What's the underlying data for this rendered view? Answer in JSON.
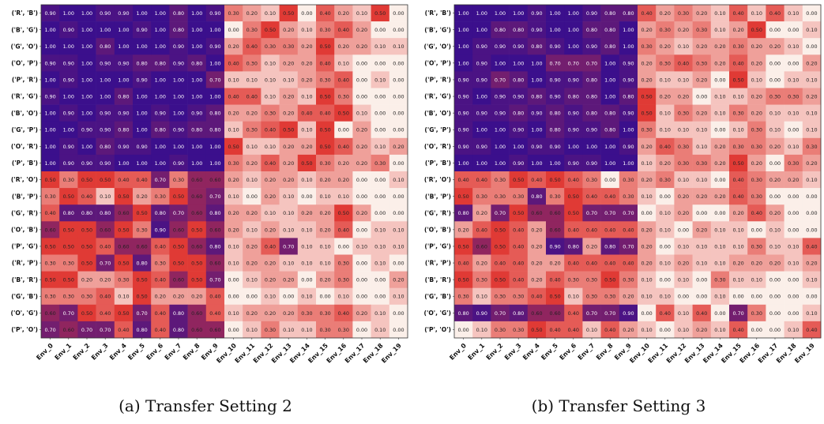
{
  "colors": {
    "high": "#3b0f8c",
    "mid": "#fbefe9",
    "low": "#e03a35"
  },
  "chart_data": [
    {
      "type": "heatmap",
      "caption": "(a) Transfer Setting 2",
      "rows": [
        "('R', 'B')",
        "('B', 'G')",
        "('G', 'O')",
        "('O', 'P')",
        "('P', 'R')",
        "('R', 'G')",
        "('B', 'O')",
        "('G', 'P')",
        "('O', 'R')",
        "('P', 'B')",
        "('R', 'O')",
        "('B', 'P')",
        "('G', 'R')",
        "('O', 'B')",
        "('P', 'G')",
        "('R', 'P')",
        "('B', 'R')",
        "('G', 'B')",
        "('O', 'G')",
        "('P', 'O')"
      ],
      "cols": [
        "Env_0",
        "Env_1",
        "Env_2",
        "Env_3",
        "Env_4",
        "Env_5",
        "Env_6",
        "Env_7",
        "Env_8",
        "Env_9",
        "Env_10",
        "Env_11",
        "Env_12",
        "Env_13",
        "Env_14",
        "Env_15",
        "Env_16",
        "Env_17",
        "Env_18",
        "Env_19"
      ],
      "values": [
        [
          0.9,
          1.0,
          1.0,
          0.9,
          0.9,
          1.0,
          1.0,
          0.8,
          1.0,
          0.9,
          0.3,
          0.2,
          0.1,
          0.5,
          0.0,
          0.4,
          0.2,
          0.1,
          0.5,
          0.0
        ],
        [
          1.0,
          0.9,
          1.0,
          1.0,
          1.0,
          0.9,
          1.0,
          0.8,
          1.0,
          1.0,
          0.0,
          0.3,
          0.5,
          0.2,
          0.1,
          0.3,
          0.4,
          0.2,
          0.0,
          0.0
        ],
        [
          1.0,
          1.0,
          1.0,
          0.8,
          1.0,
          1.0,
          1.0,
          0.9,
          1.0,
          0.9,
          0.2,
          0.4,
          0.3,
          0.3,
          0.2,
          0.5,
          0.2,
          0.2,
          0.1,
          0.1
        ],
        [
          0.9,
          0.9,
          1.0,
          0.9,
          0.9,
          0.8,
          0.8,
          0.9,
          0.8,
          1.0,
          0.4,
          0.3,
          0.1,
          0.2,
          0.2,
          0.4,
          0.1,
          0.0,
          0.0,
          0.0
        ],
        [
          1.0,
          0.9,
          1.0,
          1.0,
          1.0,
          0.9,
          1.0,
          1.0,
          1.0,
          0.7,
          0.1,
          0.1,
          0.1,
          0.1,
          0.2,
          0.3,
          0.4,
          0.0,
          0.1,
          0.0
        ],
        [
          0.9,
          1.0,
          1.0,
          1.0,
          0.8,
          1.0,
          1.0,
          1.0,
          1.0,
          1.0,
          0.4,
          0.4,
          0.1,
          0.2,
          0.1,
          0.5,
          0.3,
          0.0,
          0.0,
          0.0
        ],
        [
          1.0,
          0.9,
          1.0,
          0.9,
          0.9,
          1.0,
          0.9,
          1.0,
          0.9,
          0.8,
          0.2,
          0.2,
          0.3,
          0.2,
          0.4,
          0.4,
          0.5,
          0.1,
          0.0,
          0.0
        ],
        [
          1.0,
          1.0,
          0.9,
          0.9,
          0.8,
          1.0,
          0.8,
          0.9,
          0.8,
          0.8,
          0.1,
          0.3,
          0.4,
          0.5,
          0.1,
          0.5,
          0.0,
          0.2,
          0.0,
          0.0
        ],
        [
          1.0,
          0.9,
          1.0,
          0.8,
          0.9,
          0.9,
          1.0,
          1.0,
          1.0,
          1.0,
          0.5,
          0.1,
          0.1,
          0.2,
          0.2,
          0.5,
          0.4,
          0.2,
          0.1,
          0.2
        ],
        [
          1.0,
          0.9,
          0.9,
          0.9,
          1.0,
          1.0,
          1.0,
          0.9,
          1.0,
          1.0,
          0.3,
          0.2,
          0.4,
          0.2,
          0.5,
          0.3,
          0.2,
          0.2,
          0.3,
          0.0
        ],
        [
          0.5,
          0.3,
          0.5,
          0.5,
          0.4,
          0.4,
          0.7,
          0.3,
          0.6,
          0.6,
          0.2,
          0.1,
          0.2,
          0.2,
          0.1,
          0.2,
          0.2,
          0.0,
          0.0,
          0.1
        ],
        [
          0.3,
          0.5,
          0.4,
          0.1,
          0.5,
          0.2,
          0.3,
          0.5,
          0.6,
          0.7,
          0.1,
          0.0,
          0.2,
          0.1,
          0.0,
          0.1,
          0.1,
          0.0,
          0.0,
          0.0
        ],
        [
          0.4,
          0.8,
          0.8,
          0.8,
          0.6,
          0.5,
          0.8,
          0.7,
          0.6,
          0.8,
          0.2,
          0.2,
          0.1,
          0.1,
          0.2,
          0.2,
          0.5,
          0.2,
          0.0,
          0.0
        ],
        [
          0.6,
          0.5,
          0.5,
          0.6,
          0.5,
          0.3,
          0.9,
          0.6,
          0.5,
          0.6,
          0.2,
          0.1,
          0.2,
          0.1,
          0.1,
          0.2,
          0.4,
          0.0,
          0.1,
          0.1
        ],
        [
          0.5,
          0.5,
          0.5,
          0.4,
          0.6,
          0.6,
          0.4,
          0.5,
          0.6,
          0.8,
          0.1,
          0.2,
          0.4,
          0.7,
          0.1,
          0.1,
          0.0,
          0.1,
          0.1,
          0.1
        ],
        [
          0.3,
          0.3,
          0.5,
          0.7,
          0.5,
          0.8,
          0.3,
          0.5,
          0.5,
          0.6,
          0.1,
          0.2,
          0.2,
          0.1,
          0.1,
          0.1,
          0.3,
          0.0,
          0.1,
          0.0
        ],
        [
          0.5,
          0.5,
          0.2,
          0.2,
          0.3,
          0.5,
          0.4,
          0.6,
          0.5,
          0.7,
          0.0,
          0.1,
          0.2,
          0.2,
          0.0,
          0.2,
          0.3,
          0.0,
          0.0,
          0.2
        ],
        [
          0.3,
          0.3,
          0.3,
          0.4,
          0.1,
          0.5,
          0.2,
          0.2,
          0.2,
          0.4,
          0.0,
          0.0,
          0.1,
          0.0,
          0.1,
          0.0,
          0.1,
          0.0,
          0.0,
          0.1
        ],
        [
          0.6,
          0.7,
          0.5,
          0.4,
          0.5,
          0.7,
          0.4,
          0.8,
          0.6,
          0.4,
          0.1,
          0.2,
          0.2,
          0.2,
          0.3,
          0.3,
          0.4,
          0.2,
          0.1,
          0.0
        ],
        [
          0.7,
          0.6,
          0.7,
          0.7,
          0.4,
          0.8,
          0.4,
          0.8,
          0.6,
          0.6,
          0.0,
          0.1,
          0.3,
          0.1,
          0.1,
          0.3,
          0.3,
          0.0,
          0.1,
          0.0
        ]
      ]
    },
    {
      "type": "heatmap",
      "caption": "(b) Transfer Setting 3",
      "rows": [
        "('R', 'B')",
        "('B', 'G')",
        "('G', 'O')",
        "('O', 'P')",
        "('P', 'R')",
        "('R', 'G')",
        "('B', 'O')",
        "('G', 'P')",
        "('O', 'R')",
        "('P', 'B')",
        "('R', 'O')",
        "('B', 'P')",
        "('G', 'R')",
        "('O', 'B')",
        "('P', 'G')",
        "('R', 'P')",
        "('B', 'R')",
        "('G', 'B')",
        "('O', 'G')",
        "('P', 'O')"
      ],
      "cols": [
        "Env_0",
        "Env_1",
        "Env_2",
        "Env_3",
        "Env_4",
        "Env_5",
        "Env_6",
        "Env_7",
        "Env_8",
        "Env_9",
        "Env_10",
        "Env_11",
        "Env_12",
        "Env_13",
        "Env_14",
        "Env_15",
        "Env_16",
        "Env_17",
        "Env_18",
        "Env_19"
      ],
      "values": [
        [
          1.0,
          1.0,
          1.0,
          1.0,
          0.9,
          1.0,
          1.0,
          0.9,
          0.8,
          0.8,
          0.4,
          0.2,
          0.3,
          0.2,
          0.1,
          0.4,
          0.1,
          0.4,
          0.1,
          0.0
        ],
        [
          1.0,
          1.0,
          0.8,
          0.8,
          0.9,
          1.0,
          1.0,
          0.8,
          0.8,
          1.0,
          0.2,
          0.3,
          0.2,
          0.3,
          0.1,
          0.2,
          0.5,
          0.0,
          0.0,
          0.1
        ],
        [
          1.0,
          0.9,
          0.9,
          0.9,
          0.8,
          0.9,
          1.0,
          0.9,
          0.8,
          1.0,
          0.3,
          0.2,
          0.1,
          0.2,
          0.2,
          0.3,
          0.2,
          0.2,
          0.1,
          0.0
        ],
        [
          1.0,
          0.9,
          1.0,
          1.0,
          1.0,
          0.7,
          0.7,
          0.7,
          1.0,
          0.9,
          0.2,
          0.3,
          0.4,
          0.3,
          0.2,
          0.4,
          0.2,
          0.0,
          0.0,
          0.2
        ],
        [
          0.9,
          0.9,
          0.7,
          0.8,
          1.0,
          0.9,
          0.9,
          0.8,
          1.0,
          0.9,
          0.2,
          0.1,
          0.1,
          0.2,
          0.0,
          0.5,
          0.1,
          0.0,
          0.1,
          0.1
        ],
        [
          0.9,
          1.0,
          0.9,
          0.9,
          0.8,
          0.9,
          0.8,
          0.8,
          1.0,
          0.8,
          0.5,
          0.2,
          0.2,
          0.0,
          0.1,
          0.1,
          0.2,
          0.3,
          0.3,
          0.2
        ],
        [
          0.9,
          0.9,
          0.9,
          0.8,
          0.9,
          0.8,
          0.9,
          0.8,
          0.8,
          0.9,
          0.5,
          0.1,
          0.3,
          0.2,
          0.1,
          0.3,
          0.2,
          0.1,
          0.1,
          0.1
        ],
        [
          0.9,
          1.0,
          1.0,
          0.9,
          1.0,
          0.8,
          0.9,
          0.9,
          0.8,
          1.0,
          0.3,
          0.1,
          0.1,
          0.1,
          0.0,
          0.1,
          0.3,
          0.1,
          0.0,
          0.1
        ],
        [
          0.9,
          0.9,
          1.0,
          1.0,
          0.9,
          0.9,
          1.0,
          1.0,
          1.0,
          0.9,
          0.2,
          0.4,
          0.3,
          0.1,
          0.2,
          0.3,
          0.3,
          0.2,
          0.1,
          0.3
        ],
        [
          1.0,
          1.0,
          1.0,
          0.9,
          1.0,
          1.0,
          0.9,
          0.9,
          1.0,
          1.0,
          0.1,
          0.2,
          0.3,
          0.3,
          0.2,
          0.5,
          0.2,
          0.0,
          0.3,
          0.2
        ],
        [
          0.4,
          0.4,
          0.3,
          0.5,
          0.4,
          0.5,
          0.4,
          0.3,
          0.0,
          0.3,
          0.2,
          0.3,
          0.1,
          0.1,
          0.0,
          0.4,
          0.3,
          0.2,
          0.2,
          0.1
        ],
        [
          0.5,
          0.3,
          0.3,
          0.3,
          0.8,
          0.3,
          0.5,
          0.4,
          0.4,
          0.3,
          0.1,
          0.0,
          0.2,
          0.2,
          0.2,
          0.4,
          0.3,
          0.0,
          0.0,
          0.0
        ],
        [
          0.8,
          0.2,
          0.7,
          0.5,
          0.6,
          0.6,
          0.5,
          0.7,
          0.7,
          0.7,
          0.0,
          0.1,
          0.2,
          0.0,
          0.0,
          0.2,
          0.4,
          0.2,
          0.0,
          0.0
        ],
        [
          0.2,
          0.4,
          0.5,
          0.4,
          0.2,
          0.6,
          0.4,
          0.4,
          0.4,
          0.4,
          0.2,
          0.1,
          0.0,
          0.2,
          0.1,
          0.1,
          0.0,
          0.1,
          0.0,
          0.0
        ],
        [
          0.5,
          0.6,
          0.5,
          0.4,
          0.2,
          0.9,
          0.8,
          0.2,
          0.8,
          0.7,
          0.2,
          0.0,
          0.1,
          0.1,
          0.1,
          0.1,
          0.3,
          0.1,
          0.1,
          0.4
        ],
        [
          0.4,
          0.2,
          0.4,
          0.4,
          0.2,
          0.2,
          0.4,
          0.4,
          0.4,
          0.4,
          0.2,
          0.1,
          0.2,
          0.1,
          0.1,
          0.2,
          0.2,
          0.2,
          0.1,
          0.2
        ],
        [
          0.5,
          0.3,
          0.5,
          0.4,
          0.2,
          0.4,
          0.3,
          0.3,
          0.5,
          0.3,
          0.1,
          0.0,
          0.1,
          0.0,
          0.3,
          0.1,
          0.1,
          0.0,
          0.0,
          0.1
        ],
        [
          0.3,
          0.1,
          0.3,
          0.3,
          0.4,
          0.5,
          0.1,
          0.3,
          0.3,
          0.2,
          0.1,
          0.1,
          0.0,
          0.0,
          0.1,
          0.0,
          0.0,
          0.0,
          0.0,
          0.0
        ],
        [
          0.8,
          0.9,
          0.7,
          0.8,
          0.6,
          0.6,
          0.4,
          0.7,
          0.7,
          0.9,
          0.0,
          0.4,
          0.1,
          0.4,
          0.0,
          0.7,
          0.3,
          0.0,
          0.0,
          0.1
        ],
        [
          0.0,
          0.1,
          0.3,
          0.3,
          0.5,
          0.4,
          0.4,
          0.1,
          0.4,
          0.2,
          0.1,
          0.0,
          0.1,
          0.2,
          0.1,
          0.4,
          0.0,
          0.0,
          0.1,
          0.4
        ]
      ]
    }
  ]
}
